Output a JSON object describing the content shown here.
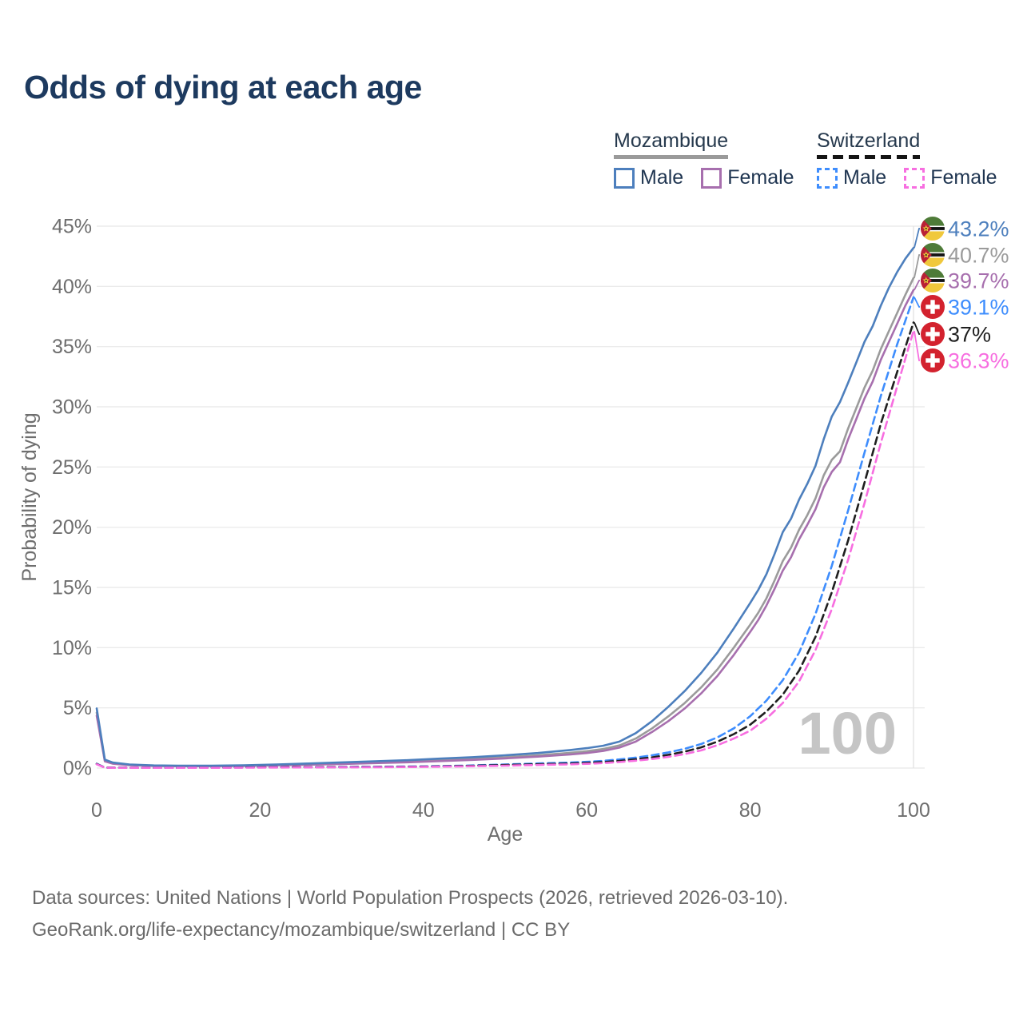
{
  "title": "Odds of dying at each age",
  "legend": {
    "mozambique": {
      "label": "Mozambique",
      "male": "Male",
      "female": "Female"
    },
    "switzerland": {
      "label": "Switzerland",
      "male": "Male",
      "female": "Female"
    }
  },
  "footer": {
    "line1": "Data sources: United Nations | World Population Prospects (2026, retrieved 2026-03-10).",
    "line2": "GeoRank.org/life-expectancy/mozambique/switzerland | CC BY"
  },
  "colors": {
    "title_text": "#1d3a5f",
    "axis_text": "#6e6e6e",
    "gridline": "#ebebeb",
    "watermark": "#c5c5c5",
    "mozambique_male": "#4d7fbd",
    "mozambique_total": "#9b9b9b",
    "mozambique_female": "#a76fae",
    "switzerland_male": "#3e8dfd",
    "switzerland_total": "#1f1f1f",
    "switzerland_female": "#f76ee0",
    "swiss_flag_red": "#d3222e",
    "moz_flag_green": "#4e7b38",
    "moz_flag_black": "#141414",
    "moz_flag_yellow": "#f0c83c",
    "moz_flag_red": "#b92036"
  },
  "chart_data": {
    "type": "line",
    "title": "Odds of dying at each age",
    "xlabel": "Age",
    "ylabel": "Probability of dying",
    "xlim": [
      0,
      100
    ],
    "ylim": [
      0,
      45
    ],
    "x_ticks": [
      0,
      20,
      40,
      60,
      80,
      100
    ],
    "y_ticks": [
      0,
      5,
      10,
      15,
      20,
      25,
      30,
      35,
      40,
      45
    ],
    "y_tick_suffix": "%",
    "grid": "horizontal",
    "watermark": "100",
    "legend_position": "top-right",
    "series": [
      {
        "id": "mozambique-total",
        "name": "Mozambique (total)",
        "country": "Mozambique",
        "flag": "mozambique",
        "dashed": false,
        "color": "#9b9b9b",
        "end_label": "40.7%",
        "end_value": 40.7,
        "label_slot": 1,
        "points": [
          [
            0,
            4.6
          ],
          [
            1,
            0.62
          ],
          [
            2,
            0.4
          ],
          [
            4,
            0.27
          ],
          [
            7,
            0.19
          ],
          [
            10,
            0.17
          ],
          [
            14,
            0.17
          ],
          [
            18,
            0.2
          ],
          [
            22,
            0.26
          ],
          [
            26,
            0.32
          ],
          [
            30,
            0.4
          ],
          [
            34,
            0.47
          ],
          [
            38,
            0.55
          ],
          [
            42,
            0.66
          ],
          [
            46,
            0.77
          ],
          [
            50,
            0.9
          ],
          [
            54,
            1.06
          ],
          [
            58,
            1.27
          ],
          [
            60,
            1.4
          ],
          [
            62,
            1.58
          ],
          [
            64,
            1.88
          ],
          [
            66,
            2.45
          ],
          [
            68,
            3.3
          ],
          [
            70,
            4.3
          ],
          [
            72,
            5.4
          ],
          [
            74,
            6.7
          ],
          [
            76,
            8.2
          ],
          [
            78,
            10.0
          ],
          [
            80,
            11.9
          ],
          [
            81,
            12.9
          ],
          [
            82,
            14.1
          ],
          [
            83,
            15.6
          ],
          [
            84,
            17.2
          ],
          [
            85,
            18.3
          ],
          [
            86,
            19.8
          ],
          [
            87,
            21.0
          ],
          [
            88,
            22.4
          ],
          [
            89,
            24.3
          ],
          [
            90,
            25.6
          ],
          [
            91,
            26.3
          ],
          [
            92,
            28.2
          ],
          [
            93,
            29.9
          ],
          [
            94,
            31.6
          ],
          [
            95,
            33.0
          ],
          [
            96,
            34.8
          ],
          [
            97,
            36.3
          ],
          [
            98,
            37.8
          ],
          [
            99,
            39.3
          ],
          [
            100,
            40.7
          ]
        ]
      },
      {
        "id": "mozambique-female",
        "name": "Mozambique Female",
        "country": "Mozambique",
        "flag": "mozambique",
        "dashed": false,
        "color": "#a76fae",
        "end_label": "39.7%",
        "end_value": 39.7,
        "label_slot": 2,
        "points": [
          [
            0,
            4.35
          ],
          [
            1,
            0.56
          ],
          [
            2,
            0.36
          ],
          [
            4,
            0.24
          ],
          [
            7,
            0.17
          ],
          [
            10,
            0.15
          ],
          [
            14,
            0.15
          ],
          [
            18,
            0.17
          ],
          [
            22,
            0.22
          ],
          [
            26,
            0.28
          ],
          [
            30,
            0.34
          ],
          [
            34,
            0.41
          ],
          [
            38,
            0.48
          ],
          [
            42,
            0.58
          ],
          [
            46,
            0.68
          ],
          [
            50,
            0.8
          ],
          [
            54,
            0.95
          ],
          [
            58,
            1.13
          ],
          [
            60,
            1.25
          ],
          [
            62,
            1.42
          ],
          [
            64,
            1.7
          ],
          [
            66,
            2.2
          ],
          [
            68,
            3.0
          ],
          [
            70,
            3.9
          ],
          [
            72,
            4.95
          ],
          [
            74,
            6.2
          ],
          [
            76,
            7.65
          ],
          [
            78,
            9.4
          ],
          [
            80,
            11.3
          ],
          [
            81,
            12.3
          ],
          [
            82,
            13.5
          ],
          [
            83,
            14.9
          ],
          [
            84,
            16.4
          ],
          [
            85,
            17.5
          ],
          [
            86,
            19.0
          ],
          [
            87,
            20.2
          ],
          [
            88,
            21.5
          ],
          [
            89,
            23.3
          ],
          [
            90,
            24.6
          ],
          [
            91,
            25.4
          ],
          [
            92,
            27.3
          ],
          [
            93,
            29.0
          ],
          [
            94,
            30.7
          ],
          [
            95,
            32.1
          ],
          [
            96,
            33.9
          ],
          [
            97,
            35.4
          ],
          [
            98,
            36.9
          ],
          [
            99,
            38.4
          ],
          [
            100,
            39.7
          ]
        ]
      },
      {
        "id": "mozambique-male",
        "name": "Mozambique Male",
        "country": "Mozambique",
        "flag": "mozambique",
        "dashed": false,
        "color": "#4d7fbd",
        "end_label": "43.2%",
        "end_value": 43.2,
        "label_slot": 0,
        "points": [
          [
            0,
            4.95
          ],
          [
            1,
            0.7
          ],
          [
            2,
            0.45
          ],
          [
            4,
            0.3
          ],
          [
            7,
            0.22
          ],
          [
            10,
            0.2
          ],
          [
            14,
            0.2
          ],
          [
            18,
            0.23
          ],
          [
            22,
            0.3
          ],
          [
            26,
            0.38
          ],
          [
            30,
            0.47
          ],
          [
            34,
            0.56
          ],
          [
            38,
            0.65
          ],
          [
            42,
            0.78
          ],
          [
            46,
            0.9
          ],
          [
            50,
            1.06
          ],
          [
            54,
            1.25
          ],
          [
            58,
            1.5
          ],
          [
            60,
            1.65
          ],
          [
            62,
            1.85
          ],
          [
            64,
            2.2
          ],
          [
            66,
            2.9
          ],
          [
            68,
            3.9
          ],
          [
            70,
            5.1
          ],
          [
            72,
            6.4
          ],
          [
            74,
            7.9
          ],
          [
            76,
            9.6
          ],
          [
            78,
            11.6
          ],
          [
            80,
            13.7
          ],
          [
            81,
            14.8
          ],
          [
            82,
            16.1
          ],
          [
            83,
            17.8
          ],
          [
            84,
            19.6
          ],
          [
            85,
            20.7
          ],
          [
            86,
            22.3
          ],
          [
            87,
            23.6
          ],
          [
            88,
            25.1
          ],
          [
            89,
            27.3
          ],
          [
            90,
            29.2
          ],
          [
            91,
            30.4
          ],
          [
            92,
            32.0
          ],
          [
            93,
            33.7
          ],
          [
            94,
            35.4
          ],
          [
            95,
            36.7
          ],
          [
            96,
            38.4
          ],
          [
            97,
            39.9
          ],
          [
            98,
            41.2
          ],
          [
            99,
            42.3
          ],
          [
            100,
            43.2
          ]
        ]
      },
      {
        "id": "switzerland-male",
        "name": "Switzerland Male",
        "country": "Switzerland",
        "flag": "switzerland",
        "dashed": true,
        "color": "#3e8dfd",
        "end_label": "39.1%",
        "end_value": 39.1,
        "label_slot": 3,
        "points": [
          [
            0,
            0.36
          ],
          [
            1,
            0.04
          ],
          [
            2,
            0.03
          ],
          [
            5,
            0.02
          ],
          [
            10,
            0.02
          ],
          [
            15,
            0.04
          ],
          [
            20,
            0.07
          ],
          [
            25,
            0.08
          ],
          [
            30,
            0.09
          ],
          [
            35,
            0.11
          ],
          [
            40,
            0.14
          ],
          [
            45,
            0.2
          ],
          [
            50,
            0.3
          ],
          [
            55,
            0.4
          ],
          [
            58,
            0.46
          ],
          [
            60,
            0.52
          ],
          [
            62,
            0.6
          ],
          [
            64,
            0.72
          ],
          [
            66,
            0.87
          ],
          [
            68,
            1.06
          ],
          [
            70,
            1.3
          ],
          [
            72,
            1.6
          ],
          [
            74,
            2.0
          ],
          [
            76,
            2.55
          ],
          [
            78,
            3.3
          ],
          [
            80,
            4.3
          ],
          [
            82,
            5.6
          ],
          [
            84,
            7.3
          ],
          [
            86,
            9.6
          ],
          [
            88,
            12.8
          ],
          [
            90,
            16.8
          ],
          [
            92,
            21.4
          ],
          [
            94,
            26.2
          ],
          [
            96,
            30.9
          ],
          [
            98,
            35.2
          ],
          [
            100,
            39.1
          ]
        ]
      },
      {
        "id": "switzerland-total",
        "name": "Switzerland (total)",
        "country": "Switzerland",
        "flag": "switzerland",
        "dashed": true,
        "color": "#1f1f1f",
        "end_label": "37%",
        "end_value": 37,
        "label_slot": 4,
        "points": [
          [
            0,
            0.34
          ],
          [
            1,
            0.04
          ],
          [
            2,
            0.03
          ],
          [
            5,
            0.02
          ],
          [
            10,
            0.02
          ],
          [
            15,
            0.03
          ],
          [
            20,
            0.06
          ],
          [
            25,
            0.07
          ],
          [
            30,
            0.08
          ],
          [
            35,
            0.09
          ],
          [
            40,
            0.12
          ],
          [
            45,
            0.17
          ],
          [
            50,
            0.25
          ],
          [
            55,
            0.33
          ],
          [
            58,
            0.38
          ],
          [
            60,
            0.43
          ],
          [
            62,
            0.5
          ],
          [
            64,
            0.6
          ],
          [
            66,
            0.73
          ],
          [
            68,
            0.89
          ],
          [
            70,
            1.1
          ],
          [
            72,
            1.37
          ],
          [
            74,
            1.72
          ],
          [
            76,
            2.2
          ],
          [
            78,
            2.82
          ],
          [
            80,
            3.6
          ],
          [
            82,
            4.7
          ],
          [
            84,
            6.1
          ],
          [
            86,
            8.1
          ],
          [
            88,
            10.9
          ],
          [
            90,
            14.6
          ],
          [
            92,
            18.9
          ],
          [
            94,
            23.7
          ],
          [
            96,
            28.6
          ],
          [
            98,
            32.9
          ],
          [
            100,
            37.0
          ]
        ]
      },
      {
        "id": "switzerland-female",
        "name": "Switzerland Female",
        "country": "Switzerland",
        "flag": "switzerland",
        "dashed": true,
        "color": "#f76ee0",
        "end_label": "36.3%",
        "end_value": 36.3,
        "label_slot": 5,
        "points": [
          [
            0,
            0.31
          ],
          [
            1,
            0.03
          ],
          [
            2,
            0.02
          ],
          [
            5,
            0.02
          ],
          [
            10,
            0.02
          ],
          [
            15,
            0.02
          ],
          [
            20,
            0.04
          ],
          [
            25,
            0.05
          ],
          [
            30,
            0.06
          ],
          [
            35,
            0.07
          ],
          [
            40,
            0.1
          ],
          [
            45,
            0.14
          ],
          [
            50,
            0.2
          ],
          [
            55,
            0.27
          ],
          [
            58,
            0.31
          ],
          [
            60,
            0.35
          ],
          [
            62,
            0.41
          ],
          [
            64,
            0.5
          ],
          [
            66,
            0.61
          ],
          [
            68,
            0.75
          ],
          [
            70,
            0.93
          ],
          [
            72,
            1.16
          ],
          [
            74,
            1.47
          ],
          [
            76,
            1.9
          ],
          [
            78,
            2.45
          ],
          [
            80,
            3.1
          ],
          [
            82,
            4.1
          ],
          [
            84,
            5.4
          ],
          [
            86,
            7.2
          ],
          [
            88,
            9.8
          ],
          [
            90,
            13.2
          ],
          [
            92,
            17.3
          ],
          [
            94,
            22.0
          ],
          [
            96,
            27.0
          ],
          [
            98,
            31.7
          ],
          [
            100,
            36.3
          ]
        ]
      }
    ]
  }
}
